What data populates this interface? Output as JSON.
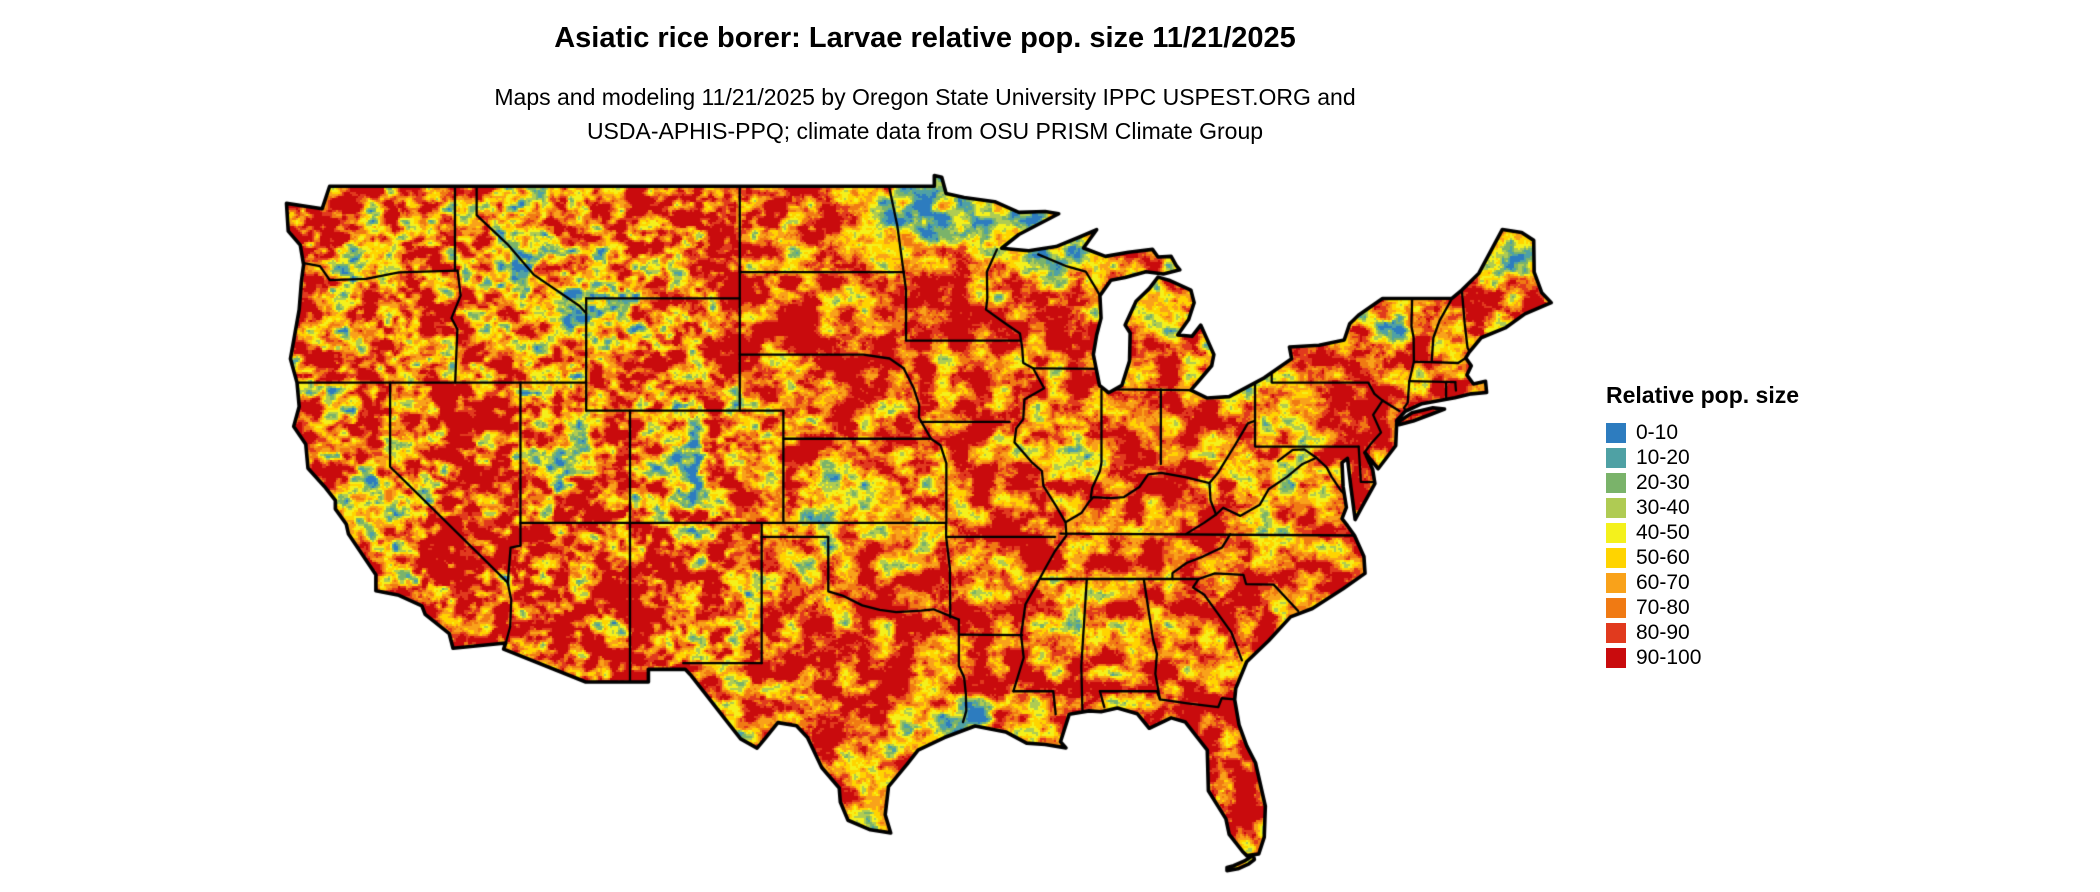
{
  "title": "Asiatic rice borer: Larvae relative pop. size 11/21/2025",
  "subtitle_line1": "Maps and modeling 11/21/2025 by Oregon State University IPPC USPEST.ORG and",
  "subtitle_line2": "USDA-APHIS-PPQ; climate data from OSU PRISM Climate Group",
  "legend": {
    "title": "Relative pop. size",
    "items": [
      {
        "label": "0-10",
        "color": "#2D7CBF"
      },
      {
        "label": "10-20",
        "color": "#4FA1A4"
      },
      {
        "label": "20-30",
        "color": "#7AB36A"
      },
      {
        "label": "30-40",
        "color": "#AFCB53"
      },
      {
        "label": "40-50",
        "color": "#F4F11C"
      },
      {
        "label": "50-60",
        "color": "#FFD400"
      },
      {
        "label": "60-70",
        "color": "#F9A21A"
      },
      {
        "label": "70-80",
        "color": "#F07A13"
      },
      {
        "label": "80-90",
        "color": "#E13A1E"
      },
      {
        "label": "90-100",
        "color": "#C90B0D"
      }
    ]
  },
  "map": {
    "region": "Conterminous United States",
    "kind": "raster population-size model map with state boundaries",
    "outline_color": "#000000",
    "background_color": "#ffffff"
  }
}
